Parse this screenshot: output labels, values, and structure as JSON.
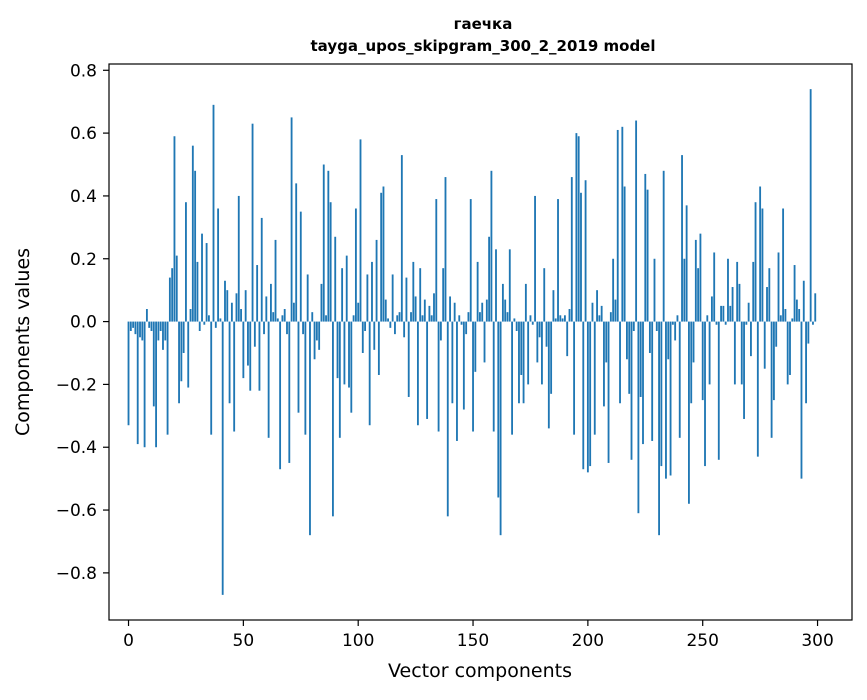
{
  "chart_data": {
    "type": "bar",
    "title": "гаечка",
    "subtitle": "tayga_upos_skipgram_300_2_2019 model",
    "xlabel": "Vector components",
    "ylabel": "Components values",
    "xlim": [
      -8.5,
      315
    ],
    "ylim": [
      -0.95,
      0.82
    ],
    "x_ticks": [
      0,
      50,
      100,
      150,
      200,
      250,
      300
    ],
    "x_tick_labels": [
      "0",
      "50",
      "100",
      "150",
      "200",
      "250",
      "300"
    ],
    "y_ticks": [
      0.8,
      0.6,
      0.4,
      0.2,
      0.0,
      -0.2,
      -0.4,
      -0.6,
      -0.8
    ],
    "y_tick_labels": [
      "0.8",
      "0.6",
      "0.4",
      "0.2",
      "0.0",
      "−0.2",
      "−0.4",
      "−0.6",
      "−0.8"
    ],
    "bar_color": "#1f77b4",
    "grid": false,
    "legend": "none",
    "x": "0..299",
    "values": [
      -0.33,
      -0.03,
      -0.02,
      -0.04,
      -0.39,
      -0.05,
      -0.06,
      -0.4,
      0.04,
      -0.02,
      -0.03,
      -0.27,
      -0.4,
      -0.06,
      -0.03,
      -0.09,
      -0.06,
      -0.36,
      0.14,
      0.17,
      0.59,
      0.21,
      -0.26,
      -0.19,
      -0.1,
      0.38,
      -0.21,
      0.04,
      0.56,
      0.48,
      0.19,
      -0.03,
      0.28,
      -0.01,
      0.25,
      0.02,
      -0.36,
      0.69,
      -0.02,
      0.36,
      0.01,
      -0.87,
      0.13,
      0.1,
      -0.26,
      0.06,
      -0.35,
      0.09,
      0.4,
      0.04,
      -0.18,
      0.1,
      -0.14,
      -0.22,
      0.63,
      -0.08,
      0.18,
      -0.22,
      0.33,
      -0.04,
      0.08,
      -0.37,
      0.12,
      0.03,
      0.26,
      0.01,
      -0.47,
      0.02,
      0.04,
      -0.04,
      -0.45,
      0.65,
      0.06,
      0.44,
      -0.29,
      0.35,
      -0.04,
      -0.36,
      0.15,
      -0.68,
      0.03,
      -0.12,
      -0.06,
      -0.09,
      0.12,
      0.5,
      0.02,
      0.48,
      0.38,
      -0.62,
      0.27,
      -0.18,
      -0.37,
      0.17,
      -0.2,
      0.21,
      -0.21,
      -0.29,
      0.02,
      0.36,
      0.06,
      0.58,
      -0.1,
      -0.03,
      0.15,
      -0.33,
      0.19,
      -0.09,
      0.26,
      -0.17,
      0.41,
      0.43,
      0.07,
      0.01,
      -0.02,
      0.15,
      -0.04,
      0.02,
      0.03,
      0.53,
      -0.05,
      0.14,
      -0.24,
      0.03,
      0.19,
      0.08,
      -0.33,
      0.17,
      0.02,
      0.07,
      -0.31,
      0.05,
      0.02,
      0.09,
      0.39,
      -0.35,
      -0.06,
      0.17,
      0.46,
      -0.62,
      0.08,
      -0.26,
      0.06,
      -0.38,
      0.02,
      -0.01,
      -0.28,
      -0.04,
      0.03,
      0.39,
      -0.35,
      -0.16,
      0.19,
      0.03,
      0.06,
      -0.13,
      0.07,
      0.27,
      0.48,
      -0.35,
      0.23,
      -0.56,
      -0.68,
      0.12,
      0.07,
      0.03,
      0.23,
      -0.36,
      0.01,
      -0.03,
      -0.26,
      -0.17,
      -0.26,
      0.12,
      -0.2,
      0.02,
      -0.01,
      0.4,
      -0.13,
      -0.05,
      -0.2,
      0.17,
      -0.08,
      -0.34,
      -0.23,
      0.1,
      0.01,
      0.39,
      0.02,
      0.01,
      0.02,
      -0.11,
      0.04,
      0.46,
      -0.36,
      0.6,
      0.59,
      0.41,
      -0.47,
      0.45,
      -0.48,
      -0.46,
      0.06,
      -0.36,
      0.1,
      0.02,
      0.05,
      -0.27,
      -0.13,
      -0.45,
      0.03,
      0.2,
      0.07,
      0.61,
      -0.26,
      0.62,
      0.43,
      -0.12,
      -0.23,
      -0.44,
      -0.03,
      0.64,
      -0.61,
      -0.24,
      -0.39,
      0.47,
      0.42,
      -0.1,
      -0.38,
      0.2,
      -0.03,
      -0.68,
      -0.46,
      0.48,
      -0.5,
      -0.12,
      -0.49,
      -0.01,
      -0.06,
      0.02,
      -0.37,
      0.53,
      0.2,
      0.37,
      -0.58,
      -0.26,
      -0.13,
      0.26,
      0.17,
      0.28,
      -0.25,
      -0.46,
      0.02,
      -0.2,
      0.08,
      0.22,
      -0.01,
      -0.44,
      0.05,
      0.05,
      -0.01,
      0.2,
      0.05,
      0.11,
      -0.2,
      0.19,
      0.12,
      -0.2,
      -0.31,
      -0.01,
      0.06,
      -0.11,
      0.19,
      0.38,
      -0.43,
      0.43,
      0.36,
      -0.15,
      0.11,
      0.17,
      -0.37,
      -0.25,
      -0.08,
      0.22,
      0.02,
      0.36,
      0.04,
      -0.2,
      -0.17,
      0.01,
      0.18,
      0.07,
      0.04,
      -0.5,
      0.13,
      -0.26,
      -0.07,
      0.74,
      -0.01,
      0.09
    ]
  }
}
